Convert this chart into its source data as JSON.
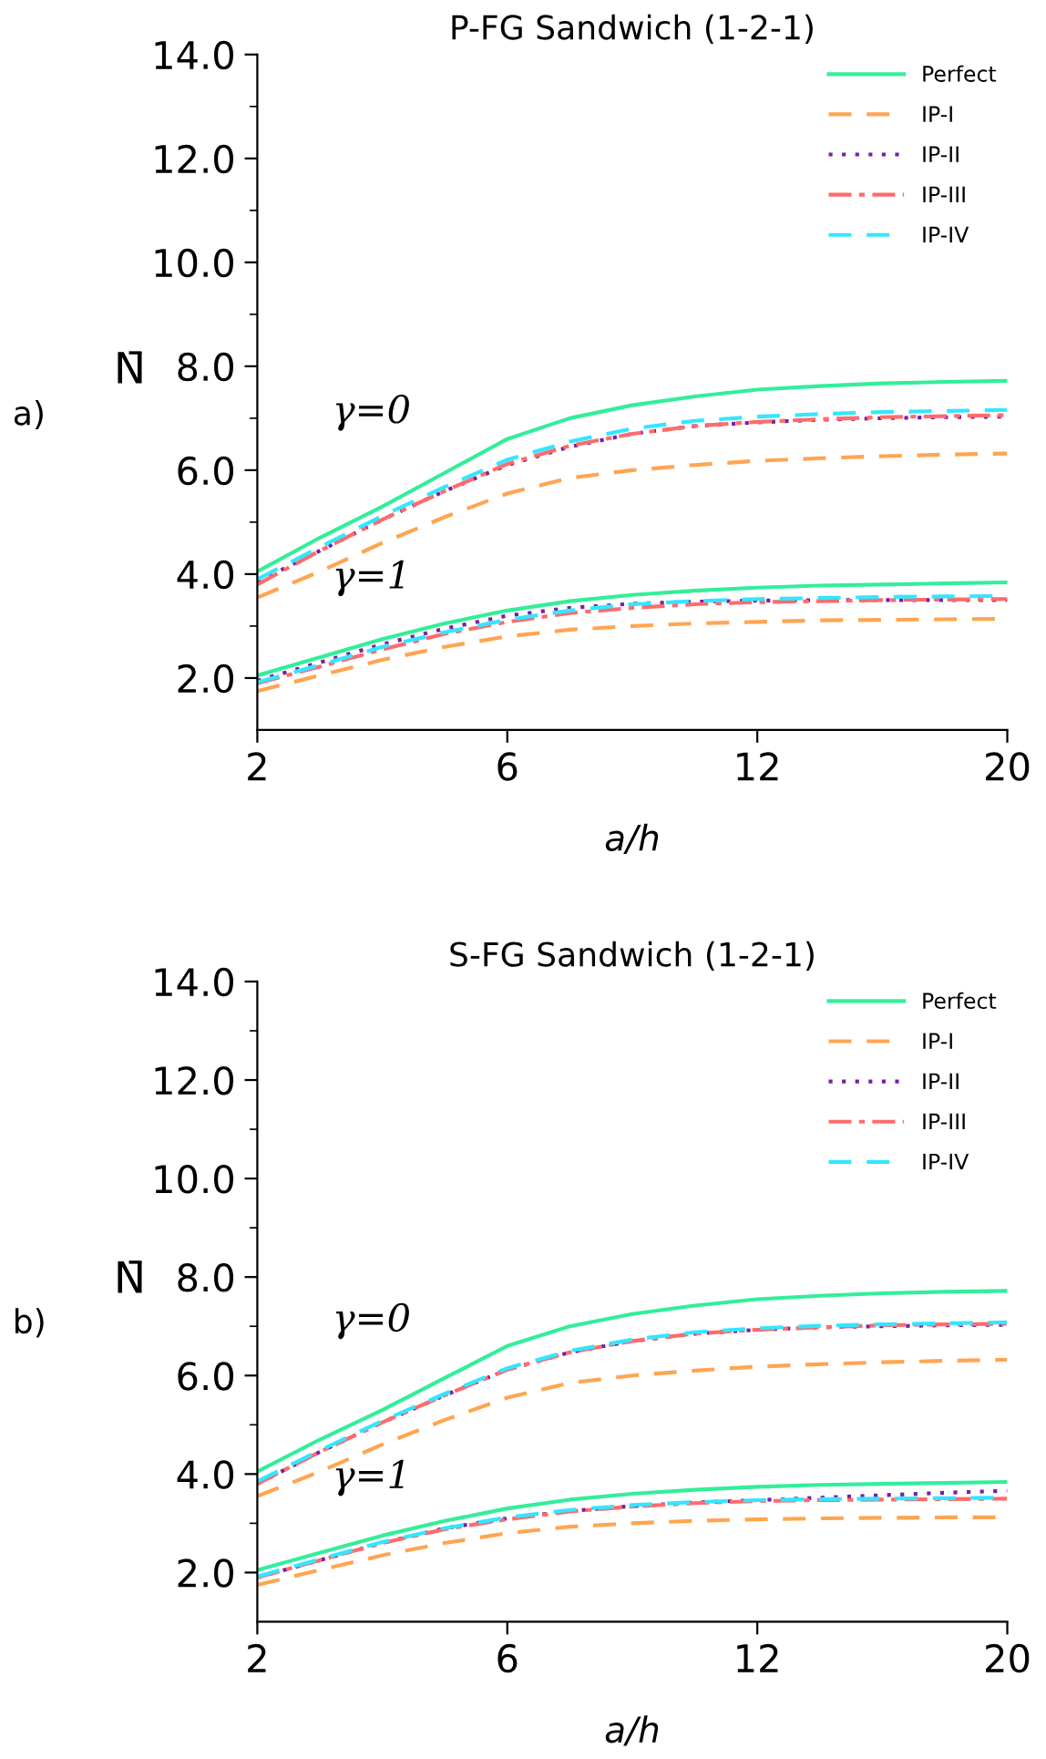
{
  "chart_data": [
    {
      "type": "line",
      "title": "P-FG Sandwich (1-2-1)",
      "xlabel": "a/h",
      "ylabel": "N̄",
      "categories": [
        "2",
        null,
        null,
        null,
        "6",
        null,
        null,
        null,
        "12",
        null,
        null,
        null,
        "20"
      ],
      "ylim": [
        1.0,
        14.0
      ],
      "yticks": [
        {
          "value": 2,
          "label": "2.0"
        },
        {
          "value": 3,
          "label": null
        },
        {
          "value": 4,
          "label": "4.0"
        },
        {
          "value": 5,
          "label": null
        },
        {
          "value": 6,
          "label": "6.0"
        },
        {
          "value": 7,
          "label": null
        },
        {
          "value": 8,
          "label": "8.0"
        },
        {
          "value": 9,
          "label": null
        },
        {
          "value": 10,
          "label": "10.0"
        },
        {
          "value": 11,
          "label": null
        },
        {
          "value": 12,
          "label": "12.0"
        },
        {
          "value": 13,
          "label": null
        },
        {
          "value": 14,
          "label": "14.0"
        }
      ],
      "grid": false,
      "legend": "top right",
      "marker": "none",
      "annotations": [
        "a)",
        "γ=0",
        "γ=1"
      ],
      "series": [
        {
          "name": "Perfect",
          "color": "#33ee99",
          "line_style": "solid",
          "values": [
            4.05,
            4.7,
            5.3,
            5.95,
            6.6,
            7.0,
            7.25,
            7.42,
            7.55,
            7.62,
            7.67,
            7.7,
            7.72
          ]
        },
        {
          "name": "IP-I",
          "color": "#ffa550",
          "line_style": "dashed",
          "values": [
            3.55,
            4.05,
            4.6,
            5.1,
            5.55,
            5.85,
            6.0,
            6.1,
            6.18,
            6.23,
            6.27,
            6.3,
            6.32
          ]
        },
        {
          "name": "IP-II",
          "color": "#7a1fa2",
          "line_style": "dotted",
          "values": [
            3.85,
            4.45,
            5.05,
            5.6,
            6.1,
            6.45,
            6.7,
            6.85,
            6.92,
            6.97,
            7.0,
            7.02,
            7.03
          ]
        },
        {
          "name": "IP-III",
          "color": "#ff6b6b",
          "line_style": "dashdot",
          "values": [
            3.8,
            4.45,
            5.05,
            5.6,
            6.12,
            6.47,
            6.7,
            6.85,
            6.93,
            6.98,
            7.02,
            7.04,
            7.06
          ]
        },
        {
          "name": "IP-IV",
          "color": "#33e6ff",
          "line_style": "dashed",
          "values": [
            3.9,
            4.52,
            5.12,
            5.68,
            6.2,
            6.55,
            6.8,
            6.95,
            7.03,
            7.08,
            7.12,
            7.14,
            7.16
          ]
        },
        {
          "color": "#33ee99",
          "line_style": "solid",
          "values": [
            2.05,
            2.4,
            2.75,
            3.05,
            3.3,
            3.48,
            3.6,
            3.68,
            3.74,
            3.78,
            3.8,
            3.82,
            3.84
          ]
        },
        {
          "color": "#ffa550",
          "line_style": "dashed",
          "values": [
            1.75,
            2.05,
            2.35,
            2.6,
            2.8,
            2.93,
            3.0,
            3.05,
            3.08,
            3.11,
            3.12,
            3.13,
            3.14
          ]
        },
        {
          "color": "#7a1fa2",
          "line_style": "dotted",
          "values": [
            1.95,
            2.3,
            2.65,
            2.95,
            3.2,
            3.35,
            3.43,
            3.47,
            3.49,
            3.5,
            3.5,
            3.5,
            3.5
          ]
        },
        {
          "color": "#ff6b6b",
          "line_style": "dashdot",
          "values": [
            1.9,
            2.22,
            2.55,
            2.85,
            3.08,
            3.25,
            3.35,
            3.42,
            3.46,
            3.48,
            3.5,
            3.51,
            3.52
          ]
        },
        {
          "color": "#33e6ff",
          "line_style": "dashed",
          "values": [
            1.92,
            2.25,
            2.6,
            2.88,
            3.12,
            3.3,
            3.42,
            3.48,
            3.52,
            3.54,
            3.56,
            3.57,
            3.58
          ]
        }
      ]
    },
    {
      "type": "line",
      "title": "S-FG Sandwich (1-2-1)",
      "xlabel": "a/h",
      "ylabel": "N̄",
      "categories": [
        "2",
        null,
        null,
        null,
        "6",
        null,
        null,
        null,
        "12",
        null,
        null,
        null,
        "20"
      ],
      "ylim": [
        1.0,
        14.0
      ],
      "yticks": [
        {
          "value": 2,
          "label": "2.0"
        },
        {
          "value": 3,
          "label": null
        },
        {
          "value": 4,
          "label": "4.0"
        },
        {
          "value": 5,
          "label": null
        },
        {
          "value": 6,
          "label": "6.0"
        },
        {
          "value": 7,
          "label": null
        },
        {
          "value": 8,
          "label": "8.0"
        },
        {
          "value": 9,
          "label": null
        },
        {
          "value": 10,
          "label": "10.0"
        },
        {
          "value": 11,
          "label": null
        },
        {
          "value": 12,
          "label": "12.0"
        },
        {
          "value": 13,
          "label": null
        },
        {
          "value": 14,
          "label": "14.0"
        }
      ],
      "grid": false,
      "legend": "top right",
      "marker": "none",
      "annotations": [
        "b)",
        "γ=0",
        "γ=1"
      ],
      "series": [
        {
          "name": "Perfect",
          "color": "#33ee99",
          "line_style": "solid",
          "values": [
            4.05,
            4.7,
            5.3,
            5.95,
            6.6,
            7.0,
            7.25,
            7.42,
            7.55,
            7.62,
            7.67,
            7.7,
            7.72
          ]
        },
        {
          "name": "IP-I",
          "color": "#ffa550",
          "line_style": "dashed",
          "values": [
            3.55,
            4.05,
            4.6,
            5.1,
            5.55,
            5.85,
            6.0,
            6.1,
            6.18,
            6.23,
            6.27,
            6.3,
            6.32
          ]
        },
        {
          "name": "IP-II",
          "color": "#7a1fa2",
          "line_style": "dotted",
          "values": [
            3.8,
            4.45,
            5.05,
            5.6,
            6.12,
            6.47,
            6.7,
            6.85,
            6.93,
            6.98,
            7.0,
            7.02,
            7.03
          ]
        },
        {
          "name": "IP-III",
          "color": "#ff6b6b",
          "line_style": "dashdot",
          "values": [
            3.8,
            4.45,
            5.05,
            5.6,
            6.12,
            6.47,
            6.7,
            6.85,
            6.93,
            6.98,
            7.02,
            7.04,
            7.05
          ]
        },
        {
          "name": "IP-IV",
          "color": "#33e6ff",
          "line_style": "dashed",
          "values": [
            3.85,
            4.48,
            5.08,
            5.63,
            6.15,
            6.5,
            6.73,
            6.88,
            6.96,
            7.01,
            7.04,
            7.06,
            7.08
          ]
        },
        {
          "color": "#33ee99",
          "line_style": "solid",
          "values": [
            2.05,
            2.4,
            2.75,
            3.05,
            3.3,
            3.48,
            3.6,
            3.68,
            3.74,
            3.78,
            3.8,
            3.82,
            3.84
          ]
        },
        {
          "color": "#ffa550",
          "line_style": "dashed",
          "values": [
            1.75,
            2.05,
            2.35,
            2.6,
            2.8,
            2.93,
            3.0,
            3.05,
            3.08,
            3.1,
            3.11,
            3.12,
            3.12
          ]
        },
        {
          "color": "#7a1fa2",
          "line_style": "dotted",
          "values": [
            1.9,
            2.25,
            2.6,
            2.9,
            3.1,
            3.25,
            3.35,
            3.42,
            3.47,
            3.52,
            3.57,
            3.62,
            3.66
          ]
        },
        {
          "color": "#ff6b6b",
          "line_style": "dashdot",
          "values": [
            1.9,
            2.25,
            2.6,
            2.88,
            3.08,
            3.24,
            3.34,
            3.41,
            3.45,
            3.47,
            3.48,
            3.49,
            3.5
          ]
        },
        {
          "color": "#33e6ff",
          "line_style": "dashed",
          "values": [
            1.92,
            2.27,
            2.62,
            2.9,
            3.12,
            3.27,
            3.37,
            3.43,
            3.47,
            3.49,
            3.5,
            3.51,
            3.52
          ]
        }
      ]
    }
  ]
}
